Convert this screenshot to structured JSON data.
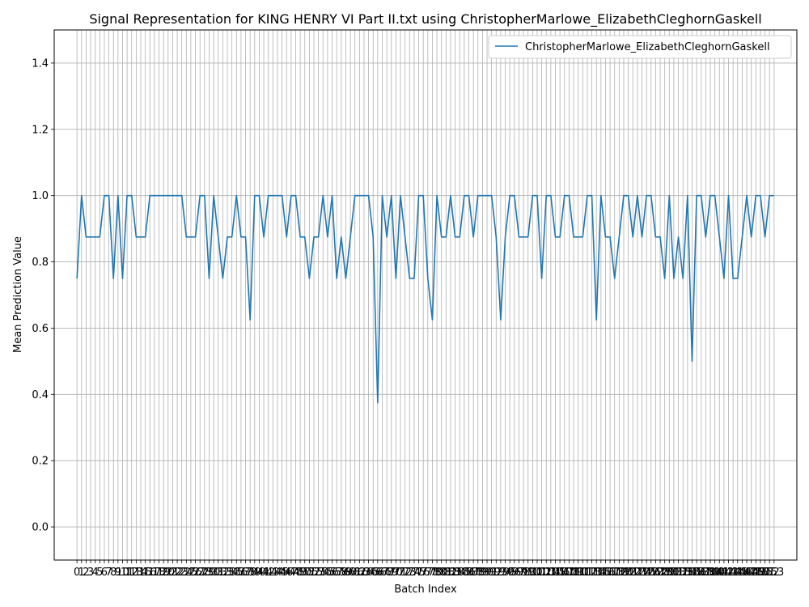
{
  "chart_data": {
    "type": "line",
    "title": "Signal Representation for KING HENRY VI Part II.txt using ChristopherMarlowe_ElizabethCleghornGaskell",
    "xlabel": "Batch Index",
    "ylabel": "Mean Prediction Value",
    "ylim": [
      -0.1,
      1.5
    ],
    "xlim": [
      -5,
      158
    ],
    "yticks": [
      0.0,
      0.2,
      0.4,
      0.6,
      0.8,
      1.0,
      1.2,
      1.4
    ],
    "grid": true,
    "legend_position": "upper right",
    "series": [
      {
        "name": "ChristopherMarlowe_ElizabethCleghornGaskell",
        "color": "#1f77b4",
        "x": [
          0,
          1,
          2,
          3,
          4,
          5,
          6,
          7,
          8,
          9,
          10,
          11,
          12,
          13,
          14,
          15,
          16,
          17,
          18,
          19,
          20,
          21,
          22,
          23,
          24,
          25,
          26,
          27,
          28,
          29,
          30,
          31,
          32,
          33,
          34,
          35,
          36,
          37,
          38,
          39,
          40,
          41,
          42,
          43,
          44,
          45,
          46,
          47,
          48,
          49,
          50,
          51,
          52,
          53,
          54,
          55,
          56,
          57,
          58,
          59,
          60,
          61,
          62,
          63,
          64,
          65,
          66,
          67,
          68,
          69,
          70,
          71,
          72,
          73,
          74,
          75,
          76,
          77,
          78,
          79,
          80,
          81,
          82,
          83,
          84,
          85,
          86,
          87,
          88,
          89,
          90,
          91,
          92,
          93,
          94,
          95,
          96,
          97,
          98,
          99,
          100,
          101,
          102,
          103,
          104,
          105,
          106,
          107,
          108,
          109,
          110,
          111,
          112,
          113,
          114,
          115,
          116,
          117,
          118,
          119,
          120,
          121,
          122,
          123,
          124,
          125,
          126,
          127,
          128,
          129,
          130,
          131,
          132,
          133,
          134,
          135,
          136,
          137,
          138,
          139,
          140,
          141,
          142,
          143,
          144,
          145,
          146,
          147,
          148,
          149,
          150,
          151,
          152,
          153
        ],
        "y": [
          0.75,
          1.0,
          0.875,
          0.875,
          0.875,
          0.875,
          1.0,
          1.0,
          0.75,
          1.0,
          0.75,
          1.0,
          1.0,
          0.875,
          0.875,
          0.875,
          1.0,
          1.0,
          1.0,
          1.0,
          1.0,
          1.0,
          1.0,
          1.0,
          0.875,
          0.875,
          0.875,
          1.0,
          1.0,
          0.75,
          1.0,
          0.875,
          0.75,
          0.875,
          0.875,
          1.0,
          0.875,
          0.875,
          0.625,
          1.0,
          1.0,
          0.875,
          1.0,
          1.0,
          1.0,
          1.0,
          0.875,
          1.0,
          1.0,
          0.875,
          0.875,
          0.75,
          0.875,
          0.875,
          1.0,
          0.875,
          1.0,
          0.75,
          0.875,
          0.75,
          0.875,
          1.0,
          1.0,
          1.0,
          1.0,
          0.875,
          0.375,
          1.0,
          0.875,
          1.0,
          0.75,
          1.0,
          0.875,
          0.75,
          0.75,
          1.0,
          1.0,
          0.75,
          0.625,
          1.0,
          0.875,
          0.875,
          1.0,
          0.875,
          0.875,
          1.0,
          1.0,
          0.875,
          1.0,
          1.0,
          1.0,
          1.0,
          0.875,
          0.625,
          0.875,
          1.0,
          1.0,
          0.875,
          0.875,
          0.875,
          1.0,
          1.0,
          0.75,
          1.0,
          1.0,
          0.875,
          0.875,
          1.0,
          1.0,
          0.875,
          0.875,
          0.875,
          1.0,
          1.0,
          0.625,
          1.0,
          0.875,
          0.875,
          0.75,
          0.875,
          1.0,
          1.0,
          0.875,
          1.0,
          0.875,
          1.0,
          1.0,
          0.875,
          0.875,
          0.75,
          1.0,
          0.75,
          0.875,
          0.75,
          1.0,
          0.5,
          1.0,
          1.0,
          0.875,
          1.0,
          1.0,
          0.875,
          0.75,
          1.0,
          0.75,
          0.75,
          0.875,
          1.0,
          0.875,
          1.0,
          1.0,
          0.875,
          1.0,
          1.0
        ]
      }
    ]
  }
}
